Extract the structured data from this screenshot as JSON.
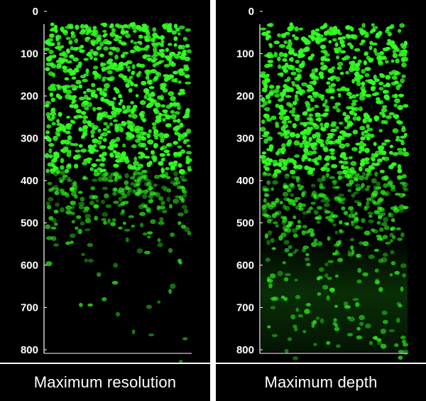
{
  "panels": [
    {
      "caption": "Maximum resolution",
      "axis_ticks": [
        "0",
        "100",
        "200",
        "300",
        "400",
        "500",
        "600",
        "700",
        "800"
      ],
      "signal_depth_fade": "dense-to-400-fading-by-600",
      "color": "#33ff22"
    },
    {
      "caption": "Maximum depth",
      "axis_ticks": [
        "0",
        "100",
        "200",
        "300",
        "400",
        "500",
        "600",
        "700",
        "800"
      ],
      "signal_depth_fade": "dense-to-400-diffuse-to-800",
      "color": "#33ff22"
    }
  ],
  "colors": {
    "background": "#000000",
    "cells": "#33ff22",
    "text": "#ffffff"
  }
}
